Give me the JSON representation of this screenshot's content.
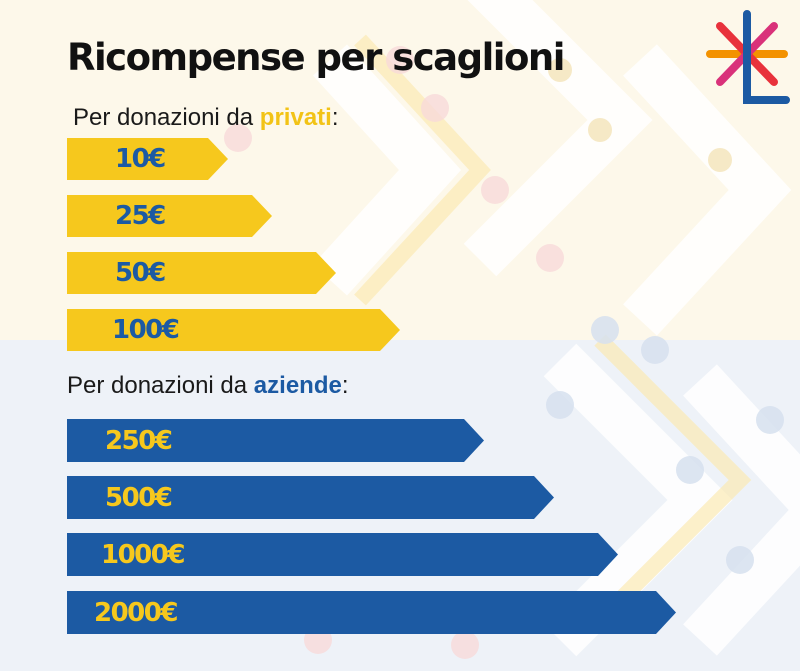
{
  "title": "Ricompense per scaglioni",
  "private_section": {
    "prefix": "Per donazioni da ",
    "keyword": "privati",
    "suffix": ":",
    "tiers": [
      {
        "amount": "10€"
      },
      {
        "amount": "25€"
      },
      {
        "amount": "50€"
      },
      {
        "amount": "100€"
      }
    ]
  },
  "company_section": {
    "prefix": "Per donazioni da ",
    "keyword": "aziende",
    "suffix": ":",
    "tiers": [
      {
        "amount": "250€"
      },
      {
        "amount": "500€"
      },
      {
        "amount": "1000€"
      },
      {
        "amount": "2000€"
      }
    ]
  },
  "colors": {
    "yellow": "#f6c81d",
    "blue": "#1c5aa3",
    "red": "#e8323c",
    "magenta": "#d9327a",
    "orange": "#f39200"
  },
  "logo": {
    "icon": "asterisk-l-logo-icon"
  }
}
